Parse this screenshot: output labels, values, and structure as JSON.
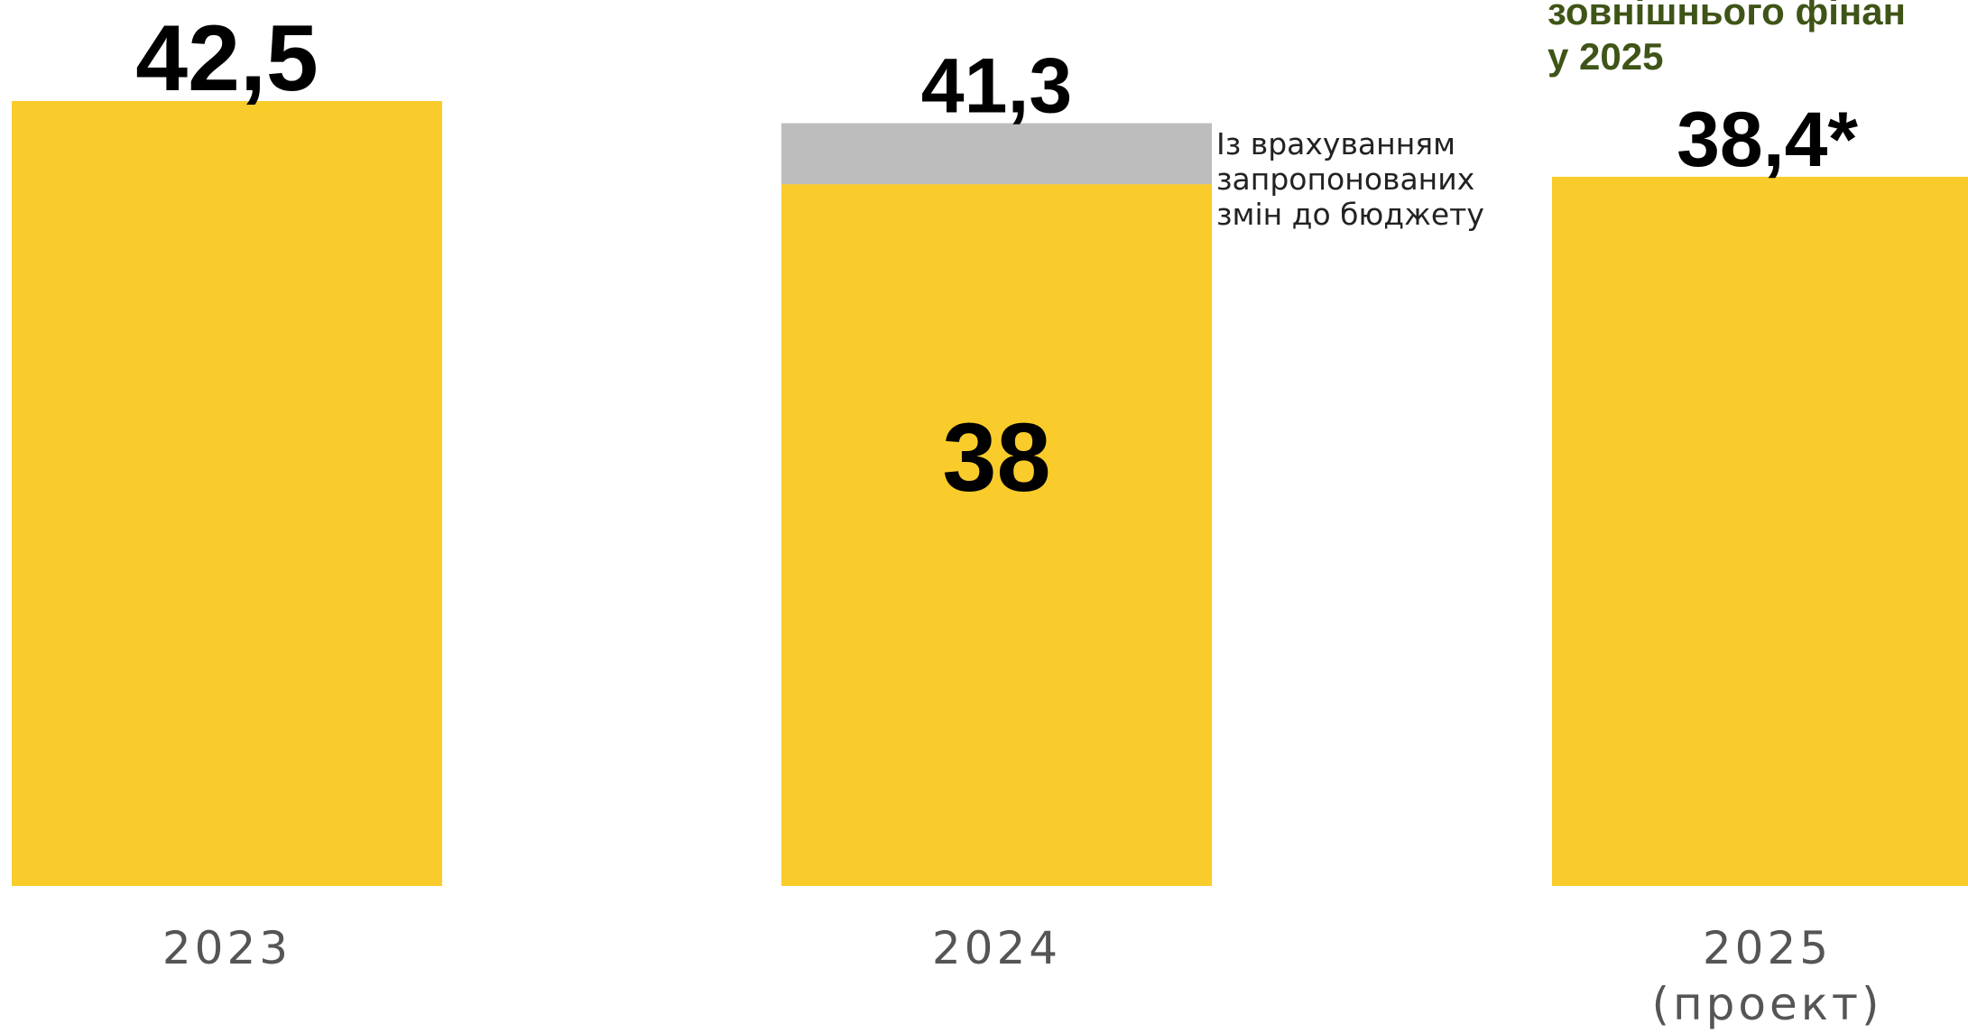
{
  "headline": {
    "lines": [
      "зовнішнього фінан",
      "у 2025"
    ],
    "color": "#3f5417"
  },
  "annotation": {
    "lines": [
      "Із врахуванням",
      "запропонованих",
      "змін до бюджету"
    ]
  },
  "colors": {
    "base": "#f9cc2b",
    "addition": "#bdbdbd",
    "value_text": "#000000",
    "tick_text": "#555555"
  },
  "chart_data": {
    "type": "bar",
    "stacked": true,
    "categories": [
      [
        "2023"
      ],
      [
        "2024"
      ],
      [
        "2025",
        "(проект)"
      ]
    ],
    "series": [
      {
        "values": [
          42.5,
          38,
          38.4
        ],
        "color": "#f9cc2b"
      },
      {
        "values": [
          0,
          3.3,
          0
        ],
        "color": "#bdbdbd"
      }
    ],
    "value_labels": [
      {
        "top": "42,5"
      },
      {
        "top": "41,3",
        "inside": "38"
      },
      {
        "top": "38,4*"
      }
    ],
    "grid": false,
    "legend": "none"
  }
}
